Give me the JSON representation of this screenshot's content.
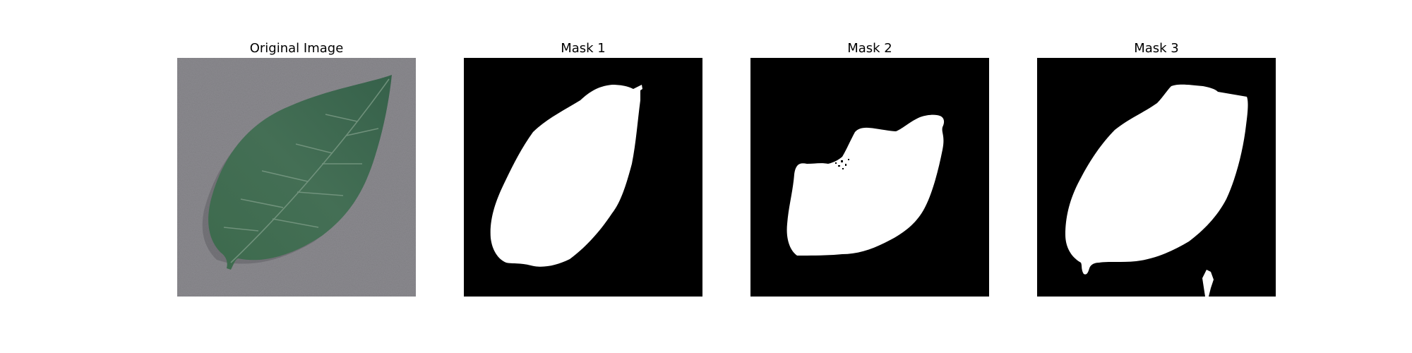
{
  "figure": {
    "panels": [
      {
        "title": "Original Image",
        "content": "photo of a green leaf on a grey speckled surface"
      },
      {
        "title": "Mask 1",
        "content": "binary segmentation mask (white leaf on black)"
      },
      {
        "title": "Mask 2",
        "content": "binary segmentation mask (white leaf on black)"
      },
      {
        "title": "Mask 3",
        "content": "binary segmentation mask (white leaf on black)"
      }
    ],
    "colors": {
      "background": "#ffffff",
      "mask_foreground": "#ffffff",
      "mask_background": "#000000",
      "leaf": "#3f6a4f",
      "surface": "#8a898d"
    }
  }
}
